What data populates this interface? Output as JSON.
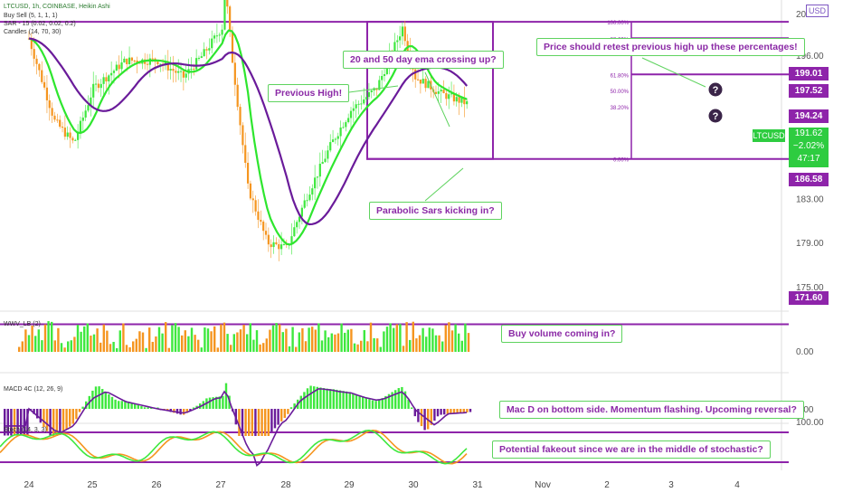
{
  "header": {
    "symbol_line": "LTCUSD, 1h, COINBASE, Heikin Ashi",
    "indicators": [
      "Buy Sell  (5, 1, 1, 1)",
      "SAR - 15 (0.02, 0.02, 0.2)",
      "Candles (14, 70, 30)"
    ],
    "currency_button": "USD",
    "top_tick": "200"
  },
  "price_scale": {
    "ticks": [
      {
        "value": 196.0,
        "label": "196.00"
      },
      {
        "value": 183.0,
        "label": "183.00"
      },
      {
        "value": 179.0,
        "label": "179.00"
      },
      {
        "value": 175.0,
        "label": "175.00"
      }
    ],
    "level_labels": [
      {
        "value": 199.01,
        "label": "199.01"
      },
      {
        "value": 197.52,
        "label": "197.52"
      },
      {
        "value": 194.24,
        "label": "194.24"
      },
      {
        "value": 186.58,
        "label": "186.58"
      },
      {
        "value": 171.6,
        "label": "171.60"
      }
    ],
    "last_price": {
      "symbol": "LTCUSD",
      "price": "191.62",
      "change": "−2.02%",
      "countdown": "47:17"
    }
  },
  "fib": {
    "levels": [
      {
        "label": "100.00%",
        "value": 199.01
      },
      {
        "label": "88.60%",
        "value": 197.52
      },
      {
        "label": "61.80%",
        "value": 194.24
      },
      {
        "label": "50.00%",
        "value": 192.8
      },
      {
        "label": "38.20%",
        "value": 191.3
      },
      {
        "label": "0.00%",
        "value": 186.58
      }
    ]
  },
  "annotations": {
    "previous_high": "Previous High!",
    "ema_cross": "20 and 50 day ema crossing up?",
    "retest": "Price should retest previous high up these percentages!",
    "sars": "Parabolic Sars kicking in?",
    "volume": "Buy volume coming in?",
    "macd": "Mac D on bottom side. Momentum flashing. Upcoming reversal?",
    "stoch": "Potential fakeout since we are in the middle of stochastic?",
    "question_mark": "?"
  },
  "panes": {
    "volume": {
      "title": "WWV_LB (2)",
      "scale_label": "0.00"
    },
    "macd": {
      "title": "MACD 4C (12, 26, 9)",
      "scale_label": "0.00"
    },
    "stoch": {
      "title": "Stoch (14, 3, 3)",
      "scale_label": "100.00"
    }
  },
  "colors": {
    "up": "#3ee83e",
    "down": "#f5951f",
    "level": "#8e24aa",
    "ema": "#6a1b9a",
    "callout": "#5fd35f",
    "text": "#8b2aa6"
  },
  "chart_data": {
    "type": "line",
    "title": "LTCUSD, 1h, COINBASE, Heikin Ashi",
    "x": [
      "24",
      "25",
      "26",
      "27",
      "28",
      "29",
      "30",
      "31",
      "Nov",
      "2",
      "3",
      "4"
    ],
    "series": [
      {
        "name": "close",
        "x": [
          "24",
          "24.5",
          "25",
          "25.5",
          "26",
          "26.5",
          "27",
          "27.1",
          "27.5",
          "28",
          "28.5",
          "29",
          "29.5",
          "29.8",
          "30",
          "30.5",
          "30.8"
        ],
        "values": [
          197.5,
          189.5,
          193.5,
          195.5,
          195.5,
          194.0,
          198.5,
          202.0,
          183.0,
          178.0,
          186.0,
          191.5,
          194.5,
          198.5,
          194.0,
          192.0,
          191.6
        ]
      }
    ],
    "horizontal_levels": [
      199.01,
      197.52,
      194.24,
      186.58,
      171.6
    ],
    "ylim": [
      171,
      200.5
    ]
  }
}
